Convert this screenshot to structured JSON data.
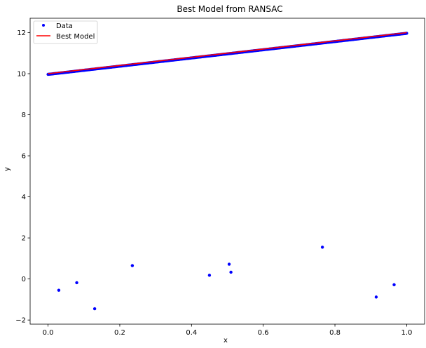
{
  "chart_data": {
    "type": "scatter",
    "title": "Best Model from RANSAC",
    "xlabel": "x",
    "ylabel": "y",
    "xlim": [
      -0.05,
      1.05
    ],
    "ylim": [
      -2.2,
      12.7
    ],
    "xticks": [
      0.0,
      0.2,
      0.4,
      0.6,
      0.8,
      1.0
    ],
    "xtick_labels": [
      "0.0",
      "0.2",
      "0.4",
      "0.6",
      "0.8",
      "1.0"
    ],
    "yticks": [
      -2,
      0,
      2,
      4,
      6,
      8,
      10,
      12
    ],
    "ytick_labels": [
      "−2",
      "0",
      "2",
      "4",
      "6",
      "8",
      "10",
      "12"
    ],
    "grid": false,
    "legend_position": "top-left",
    "series": [
      {
        "name": "Data",
        "kind": "points",
        "color": "#0000ff",
        "inlier_line": {
          "x_start": 0.0,
          "x_end": 1.0,
          "slope": 2.0,
          "intercept": 10.0
        },
        "outliers": [
          {
            "x": 0.03,
            "y": -0.55
          },
          {
            "x": 0.08,
            "y": -0.18
          },
          {
            "x": 0.13,
            "y": -1.45
          },
          {
            "x": 0.235,
            "y": 0.65
          },
          {
            "x": 0.45,
            "y": 0.18
          },
          {
            "x": 0.505,
            "y": 0.72
          },
          {
            "x": 0.51,
            "y": 0.33
          },
          {
            "x": 0.765,
            "y": 1.55
          },
          {
            "x": 0.915,
            "y": -0.88
          },
          {
            "x": 0.965,
            "y": -0.28
          }
        ]
      },
      {
        "name": "Best Model",
        "kind": "line",
        "color": "#ff0000",
        "x": [
          0.0,
          1.0
        ],
        "y": [
          10.0,
          12.0
        ]
      }
    ]
  }
}
